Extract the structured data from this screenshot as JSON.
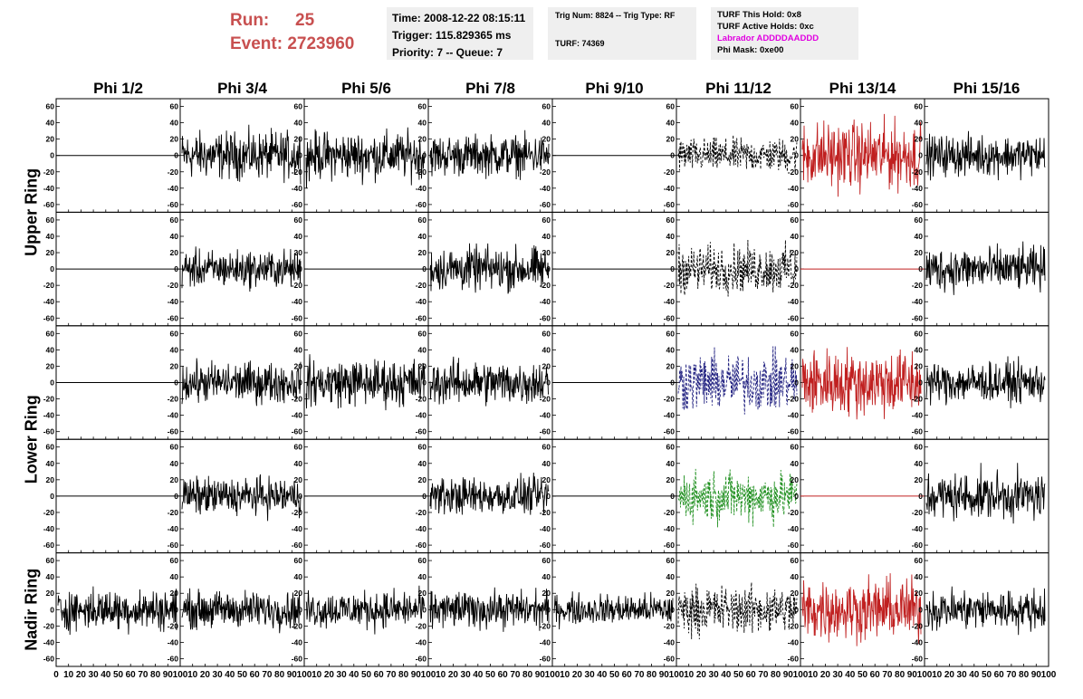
{
  "header": {
    "run_label": "Run:",
    "run_value": "25",
    "event_label": "Event:",
    "event_value": "2723960",
    "info1": [
      "Time: 2008-12-22 08:15:11",
      "Trigger: 115.829365 ms",
      "Priority: 7 -- Queue: 7"
    ],
    "info2_line1": "Trig Num: 8824 -- Trig Type: RF",
    "info2_line2": "TURF: 74369",
    "info3": [
      "TURF This Hold: 0x8",
      "TURF Active Holds: 0xc",
      "Labrador ADDDDAADDD",
      "Phi Mask: 0xe00"
    ]
  },
  "colors": {
    "black": "#000000",
    "red": "#c02020",
    "blue": "#202080",
    "green": "#209020",
    "header_accent": "#c85050",
    "labrador": "#e000e0"
  },
  "chart_data": {
    "type": "line",
    "columns": [
      "Phi 1/2",
      "Phi 3/4",
      "Phi 5/6",
      "Phi 7/8",
      "Phi 9/10",
      "Phi 11/12",
      "Phi 13/14",
      "Phi 15/16"
    ],
    "rows": [
      "Upper Ring",
      "Lower Ring",
      "Nadir Ring"
    ],
    "xlim": [
      0,
      100
    ],
    "ylim": [
      -65,
      65
    ],
    "yticks": [
      "60",
      "40",
      "20",
      "0",
      "-20",
      "-40",
      "-60"
    ],
    "xticks": [
      "0",
      "10",
      "20",
      "30",
      "40",
      "50",
      "60",
      "70",
      "80",
      "90",
      "100"
    ],
    "panels": [
      {
        "row": 0,
        "col": 0,
        "style": "flat",
        "color": "black",
        "amp": 0
      },
      {
        "row": 0,
        "col": 1,
        "style": "noise",
        "color": "black",
        "amp": 14
      },
      {
        "row": 0,
        "col": 2,
        "style": "noise",
        "color": "black",
        "amp": 14
      },
      {
        "row": 0,
        "col": 3,
        "style": "noise",
        "color": "black",
        "amp": 12
      },
      {
        "row": 0,
        "col": 4,
        "style": "flat",
        "color": "black",
        "amp": 0
      },
      {
        "row": 0,
        "col": 5,
        "style": "dashed",
        "color": "black",
        "amp": 10
      },
      {
        "row": 0,
        "col": 6,
        "style": "noise",
        "color": "red",
        "amp": 20
      },
      {
        "row": 0,
        "col": 7,
        "style": "noise",
        "color": "black",
        "amp": 12
      },
      {
        "row": 1,
        "col": 0,
        "style": "flat",
        "color": "black",
        "amp": 0
      },
      {
        "row": 1,
        "col": 1,
        "style": "noise",
        "color": "black",
        "amp": 11
      },
      {
        "row": 1,
        "col": 2,
        "style": "flat",
        "color": "black",
        "amp": 0
      },
      {
        "row": 1,
        "col": 3,
        "style": "noise",
        "color": "black",
        "amp": 13
      },
      {
        "row": 1,
        "col": 4,
        "style": "flat",
        "color": "black",
        "amp": 0
      },
      {
        "row": 1,
        "col": 5,
        "style": "dashed",
        "color": "black",
        "amp": 14
      },
      {
        "row": 1,
        "col": 6,
        "style": "flat",
        "color": "red",
        "amp": 0
      },
      {
        "row": 1,
        "col": 7,
        "style": "noise",
        "color": "black",
        "amp": 13
      },
      {
        "row": 2,
        "col": 0,
        "style": "flat",
        "color": "black",
        "amp": 0
      },
      {
        "row": 2,
        "col": 1,
        "style": "noise",
        "color": "black",
        "amp": 12
      },
      {
        "row": 2,
        "col": 2,
        "style": "noise",
        "color": "black",
        "amp": 14
      },
      {
        "row": 2,
        "col": 3,
        "style": "noise",
        "color": "black",
        "amp": 13
      },
      {
        "row": 2,
        "col": 4,
        "style": "flat",
        "color": "black",
        "amp": 0
      },
      {
        "row": 2,
        "col": 5,
        "style": "dashed",
        "color": "blue",
        "amp": 17
      },
      {
        "row": 2,
        "col": 6,
        "style": "noise",
        "color": "red",
        "amp": 20
      },
      {
        "row": 2,
        "col": 7,
        "style": "noise",
        "color": "black",
        "amp": 12
      },
      {
        "row": 3,
        "col": 0,
        "style": "flat",
        "color": "black",
        "amp": 0
      },
      {
        "row": 3,
        "col": 1,
        "style": "noise",
        "color": "black",
        "amp": 11
      },
      {
        "row": 3,
        "col": 2,
        "style": "flat",
        "color": "black",
        "amp": 0
      },
      {
        "row": 3,
        "col": 3,
        "style": "noise",
        "color": "black",
        "amp": 11
      },
      {
        "row": 3,
        "col": 4,
        "style": "flat",
        "color": "black",
        "amp": 0
      },
      {
        "row": 3,
        "col": 5,
        "style": "dashed",
        "color": "green",
        "amp": 15
      },
      {
        "row": 3,
        "col": 6,
        "style": "flat",
        "color": "red",
        "amp": 0
      },
      {
        "row": 3,
        "col": 7,
        "style": "noise",
        "color": "black",
        "amp": 14
      },
      {
        "row": 4,
        "col": 0,
        "style": "noise",
        "color": "black",
        "amp": 12
      },
      {
        "row": 4,
        "col": 1,
        "style": "noise",
        "color": "black",
        "amp": 11
      },
      {
        "row": 4,
        "col": 2,
        "style": "noise",
        "color": "black",
        "amp": 11
      },
      {
        "row": 4,
        "col": 3,
        "style": "noise",
        "color": "black",
        "amp": 11
      },
      {
        "row": 4,
        "col": 4,
        "style": "noise",
        "color": "black",
        "amp": 9
      },
      {
        "row": 4,
        "col": 5,
        "style": "dashed",
        "color": "black",
        "amp": 14
      },
      {
        "row": 4,
        "col": 6,
        "style": "noise",
        "color": "red",
        "amp": 18
      },
      {
        "row": 4,
        "col": 7,
        "style": "noise",
        "color": "black",
        "amp": 12
      }
    ]
  }
}
